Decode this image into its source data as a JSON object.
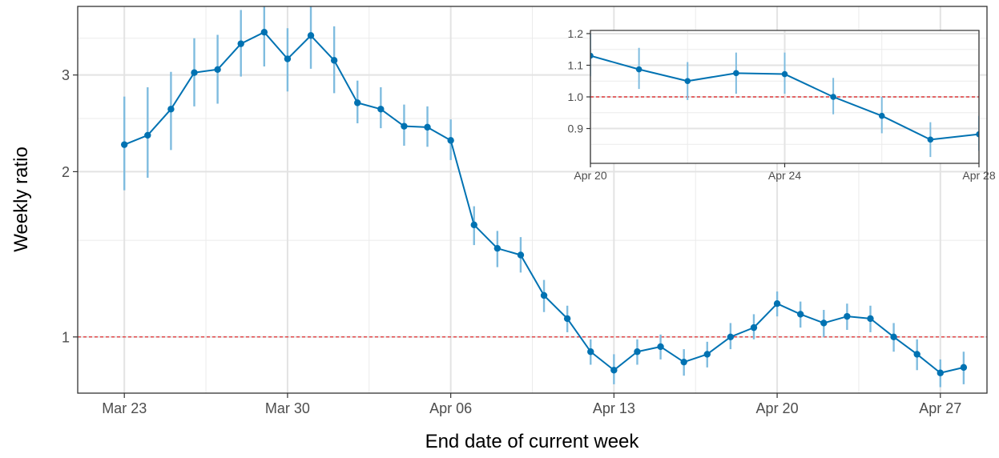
{
  "chart_data": [
    {
      "type": "line",
      "title": "",
      "xlabel": "End date of current week",
      "ylabel": "Weekly ratio",
      "y_scale": "log",
      "ylim": [
        0.79,
        4.0
      ],
      "xlim": [
        "2020-03-21",
        "2020-04-29"
      ],
      "x_ticks": [
        {
          "date": "2020-03-23",
          "label": "Mar 23"
        },
        {
          "date": "2020-03-30",
          "label": "Mar 30"
        },
        {
          "date": "2020-04-06",
          "label": "Apr 06"
        },
        {
          "date": "2020-04-13",
          "label": "Apr 13"
        },
        {
          "date": "2020-04-20",
          "label": "Apr 20"
        },
        {
          "date": "2020-04-27",
          "label": "Apr 27"
        }
      ],
      "y_ticks": [
        {
          "value": 1,
          "label": "1"
        },
        {
          "value": 2,
          "label": "2"
        },
        {
          "value": 3,
          "label": "3"
        }
      ],
      "y_minor": [
        1.5,
        2.5,
        3.5
      ],
      "reference_line": {
        "y": 1.0,
        "color": "#e31a1c",
        "style": "dashed"
      },
      "colors": {
        "line": "#0072b2",
        "error_bar": "#7fbcdf"
      },
      "grid": true,
      "series": [
        {
          "x": [
            "2020-03-23",
            "2020-03-24",
            "2020-03-25",
            "2020-03-26",
            "2020-03-27",
            "2020-03-28",
            "2020-03-29",
            "2020-03-30",
            "2020-03-31",
            "2020-04-01",
            "2020-04-02",
            "2020-04-03",
            "2020-04-04",
            "2020-04-05",
            "2020-04-06",
            "2020-04-07",
            "2020-04-08",
            "2020-04-09",
            "2020-04-10",
            "2020-04-11",
            "2020-04-12",
            "2020-04-13",
            "2020-04-14",
            "2020-04-15",
            "2020-04-16",
            "2020-04-17",
            "2020-04-18",
            "2020-04-19",
            "2020-04-20",
            "2020-04-21",
            "2020-04-22",
            "2020-04-23",
            "2020-04-24",
            "2020-04-25",
            "2020-04-26",
            "2020-04-27",
            "2020-04-28"
          ],
          "y": [
            2.24,
            2.33,
            2.6,
            3.03,
            3.07,
            3.42,
            3.59,
            3.21,
            3.54,
            3.19,
            2.67,
            2.6,
            2.42,
            2.41,
            2.28,
            1.6,
            1.45,
            1.41,
            1.19,
            1.08,
            0.94,
            0.87,
            0.94,
            0.96,
            0.9,
            0.93,
            1.0,
            1.04,
            1.15,
            1.1,
            1.06,
            1.09,
            1.08,
            1.0,
            0.93,
            0.86,
            0.88
          ],
          "lower": [
            1.85,
            1.95,
            2.19,
            2.63,
            2.66,
            2.98,
            3.11,
            2.8,
            3.08,
            2.78,
            2.45,
            2.4,
            2.23,
            2.22,
            2.1,
            1.47,
            1.34,
            1.31,
            1.11,
            1.02,
            0.89,
            0.82,
            0.89,
            0.91,
            0.85,
            0.88,
            0.95,
            0.99,
            1.09,
            1.04,
            1.0,
            1.03,
            1.02,
            0.94,
            0.87,
            0.81,
            0.82
          ],
          "upper": [
            2.74,
            2.85,
            3.04,
            3.5,
            3.55,
            3.94,
            4.05,
            3.65,
            4.0,
            3.68,
            2.93,
            2.85,
            2.65,
            2.63,
            2.49,
            1.73,
            1.56,
            1.52,
            1.27,
            1.14,
            0.99,
            0.93,
            0.99,
            1.01,
            0.95,
            0.98,
            1.06,
            1.1,
            1.21,
            1.16,
            1.12,
            1.15,
            1.14,
            1.06,
            0.99,
            0.91,
            0.94
          ]
        }
      ]
    },
    {
      "type": "line",
      "title": "",
      "xlabel": "",
      "ylabel": "",
      "ylim": [
        0.79,
        1.21
      ],
      "xlim": [
        "2020-04-20",
        "2020-04-28"
      ],
      "x_ticks": [
        {
          "date": "2020-04-20",
          "label": "Apr 20"
        },
        {
          "date": "2020-04-24",
          "label": "Apr 24"
        },
        {
          "date": "2020-04-28",
          "label": "Apr 28"
        }
      ],
      "y_ticks": [
        {
          "value": 0.9,
          "label": "0.9"
        },
        {
          "value": 1.0,
          "label": "1.0"
        },
        {
          "value": 1.1,
          "label": "1.1"
        },
        {
          "value": 1.2,
          "label": "1.2"
        }
      ],
      "reference_line": {
        "y": 1.0,
        "color": "#e31a1c",
        "style": "dashed"
      },
      "colors": {
        "line": "#0072b2",
        "error_bar": "#7fbcdf"
      },
      "grid": true,
      "series": [
        {
          "x": [
            "2020-04-20",
            "2020-04-21",
            "2020-04-22",
            "2020-04-23",
            "2020-04-24",
            "2020-04-25",
            "2020-04-26",
            "2020-04-27",
            "2020-04-28"
          ],
          "y": [
            1.13,
            1.087,
            1.05,
            1.075,
            1.072,
            1.0,
            0.94,
            0.865,
            0.882
          ],
          "lower": [
            1.065,
            1.025,
            0.99,
            1.01,
            1.01,
            0.945,
            0.885,
            0.81,
            0.83
          ],
          "upper": [
            1.2,
            1.155,
            1.11,
            1.14,
            1.14,
            1.06,
            1.0,
            0.92,
            0.94
          ]
        }
      ]
    }
  ]
}
